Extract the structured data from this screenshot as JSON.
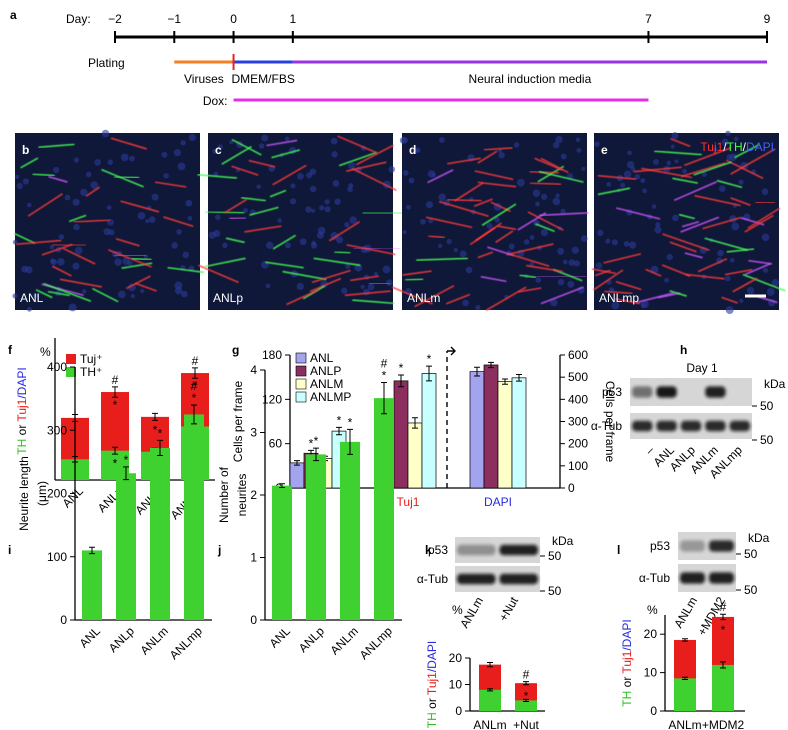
{
  "panel_labels": [
    "a",
    "b",
    "c",
    "d",
    "e",
    "f",
    "g",
    "h",
    "i",
    "j",
    "k",
    "l"
  ],
  "timeline": {
    "label": "Day:",
    "xlim": [
      -2,
      9
    ],
    "ticks": [
      {
        "value": -2,
        "label": "−2"
      },
      {
        "value": -1,
        "label": "−1"
      },
      0,
      1,
      7,
      9
    ],
    "row_label": "Plating",
    "segments": [
      {
        "label": "Viruses",
        "from": -1,
        "to": 0,
        "color": "#f08024"
      },
      {
        "label": "DMEM/FBS",
        "from": 0,
        "to": 1,
        "color": "#2a3fe0"
      },
      {
        "label": "Neural induction media",
        "from": 1,
        "to": 9,
        "color": "#9b32e6"
      }
    ],
    "marker": {
      "at": 0,
      "color": "#e0242a"
    },
    "dox": {
      "label": "Dox:",
      "from": 0,
      "to": 7,
      "color": "#e62ce6"
    }
  },
  "images": [
    {
      "label": "ANL"
    },
    {
      "label": "ANLp"
    },
    {
      "label": "ANLm"
    },
    {
      "label": "ANLmp"
    }
  ],
  "stain_legend": [
    {
      "text": "Tuj1",
      "color": "#ff3030"
    },
    {
      "text": "/",
      "color": "#ffffff"
    },
    {
      "text": "TH",
      "color": "#3cff3c"
    },
    {
      "text": "/",
      "color": "#ffffff"
    },
    {
      "text": "DAPI",
      "color": "#4060ff"
    }
  ],
  "blots": [
    {
      "title": "Day 1",
      "rows": [
        "p53",
        "α-Tub"
      ],
      "unit": "kDa",
      "markers": [
        "50",
        "50"
      ],
      "lanes": [
        "–",
        "ANL",
        "ANLp",
        "ANLm",
        "ANLmp"
      ]
    },
    {
      "rows": [
        "p53",
        "α-Tub"
      ],
      "unit": "kDa",
      "markers": [
        "50",
        "50"
      ],
      "lanes": [
        "ANLm",
        "+Nut"
      ]
    },
    {
      "rows": [
        "p53",
        "α-Tub"
      ],
      "unit": "kDa",
      "markers": [
        "50",
        "50"
      ],
      "lanes": [
        "ANLm",
        "+MDM2"
      ]
    }
  ],
  "chart_data": [
    {
      "type": "bar",
      "overlay": true,
      "categories": [
        "ANL",
        "ANLp",
        "ANLm",
        "ANLmp"
      ],
      "ylim": [
        0,
        40
      ],
      "y_unit": "%",
      "y_label_parts": [
        {
          "text": "TH",
          "color": "#2fbf24"
        },
        {
          "text": " or ",
          "color": "#000000"
        },
        {
          "text": "Tuj1",
          "color": "#e81e1c"
        },
        {
          "text": "/DAPI",
          "color": "#2a2ae0"
        }
      ],
      "series": [
        {
          "name": "Tuj⁺",
          "color": "#e81e1c",
          "values": [
            18,
            25.5,
            18.3,
            31
          ],
          "errors": [
            1,
            1.5,
            1,
            1.5
          ],
          "sig_above": [
            null,
            [
              "#"
            ],
            null,
            [
              "#"
            ]
          ],
          "sig_inside": [
            null,
            [
              "*"
            ],
            [
              "*"
            ],
            [
              "*"
            ]
          ]
        },
        {
          "name": "TH⁺",
          "color": "#3fd12f",
          "values": [
            6,
            8.5,
            8.2,
            15.5
          ],
          "errors": [
            0.8,
            1,
            1,
            1.5
          ],
          "sig_inside": [
            null,
            [
              "*"
            ],
            [
              "*"
            ],
            [
              "*"
            ]
          ]
        }
      ]
    },
    {
      "type": "bar",
      "bar_outline": true,
      "categories": [
        "TH",
        "Tuj1",
        "DAPI"
      ],
      "category_colors": [
        "#2fbf24",
        "#e81e1c",
        "#2a2ae0"
      ],
      "category_axis": [
        "y",
        "y",
        "y2"
      ],
      "ylim": [
        0,
        180
      ],
      "yticks": [
        0,
        60,
        120,
        180
      ],
      "y2lim": [
        0,
        600
      ],
      "y2ticks": [
        0,
        100,
        200,
        300,
        400,
        500,
        600
      ],
      "y_label": "Cells per frame",
      "y2_label": "Cells per frame",
      "series": [
        {
          "name": "ANL",
          "color": "#a3a3ee",
          "values": [
            34,
            97,
            525
          ],
          "errors": [
            3,
            7,
            20
          ]
        },
        {
          "name": "ANLP",
          "color": "#8c2f5f",
          "values": [
            47,
            145,
            555
          ],
          "errors": [
            4,
            8,
            12
          ],
          "sig_above": [
            [
              "*"
            ],
            [
              "*"
            ],
            null
          ]
        },
        {
          "name": "ANLM",
          "color": "#ffffc8",
          "values": [
            40,
            88,
            480
          ],
          "errors": [
            3,
            7,
            12
          ]
        },
        {
          "name": "ANLMP",
          "color": "#c8ffff",
          "values": [
            77,
            155,
            497
          ],
          "errors": [
            5,
            10,
            15
          ],
          "sig_above": [
            [
              "*"
            ],
            [
              "*"
            ],
            null
          ]
        }
      ]
    },
    {
      "type": "bar",
      "categories": [
        "ANL",
        "ANLp",
        "ANLm",
        "ANLmp"
      ],
      "ylim": [
        0,
        400
      ],
      "yticks": [
        0,
        100,
        200,
        300,
        400
      ],
      "y_label": [
        "Neurite length",
        "(μm)"
      ],
      "series": [
        {
          "color": "#3fd12f",
          "values": [
            110,
            232,
            272,
            325
          ],
          "errors": [
            5,
            10,
            12,
            15
          ],
          "sig_above": [
            null,
            [
              "*"
            ],
            [
              "*"
            ],
            [
              "#",
              "*"
            ]
          ]
        }
      ]
    },
    {
      "type": "bar",
      "categories": [
        "ANL",
        "ANLp",
        "ANLm",
        "ANLmp"
      ],
      "ylim": [
        0,
        4
      ],
      "yticks": [
        0,
        1,
        2,
        3,
        4
      ],
      "y_label": [
        "Number of",
        "neurites"
      ],
      "series": [
        {
          "color": "#3fd12f",
          "values": [
            2.15,
            2.65,
            2.85,
            3.55
          ],
          "errors": [
            0.03,
            0.1,
            0.2,
            0.25
          ],
          "sig_above": [
            null,
            [
              "*"
            ],
            [
              "*"
            ],
            [
              "#",
              "*"
            ]
          ]
        }
      ]
    },
    {
      "type": "bar",
      "overlay": true,
      "categories": [
        "ANLm",
        "+Nut"
      ],
      "ylim": [
        0,
        20
      ],
      "yticks": [
        0,
        10,
        20
      ],
      "y_unit": "%",
      "y_label_parts": [
        {
          "text": "TH",
          "color": "#2fbf24"
        },
        {
          "text": " or ",
          "color": "#000000"
        },
        {
          "text": "Tuj1",
          "color": "#e81e1c"
        },
        {
          "text": "/DAPI",
          "color": "#2a2ae0"
        }
      ],
      "series": [
        {
          "color": "#e81e1c",
          "values": [
            17.5,
            10.5
          ],
          "errors": [
            0.8,
            0.6
          ],
          "sig_above": [
            null,
            [
              "#"
            ]
          ],
          "sig_inside": [
            null,
            [
              "*"
            ]
          ]
        },
        {
          "color": "#3fd12f",
          "values": [
            8,
            4
          ],
          "errors": [
            0.4,
            0.4
          ]
        }
      ]
    },
    {
      "type": "bar",
      "overlay": true,
      "categories": [
        "ANLm",
        "+MDM2"
      ],
      "ylim": [
        0,
        25
      ],
      "yticks": [
        0,
        10,
        20
      ],
      "y_unit": "%",
      "y_label_parts": [
        {
          "text": "TH",
          "color": "#2fbf24"
        },
        {
          "text": " or ",
          "color": "#000000"
        },
        {
          "text": "Tuj1",
          "color": "#e81e1c"
        },
        {
          "text": "/DAPI",
          "color": "#2a2ae0"
        }
      ],
      "series": [
        {
          "color": "#e81e1c",
          "values": [
            18.5,
            24.5
          ],
          "errors": [
            0.3,
            0.7
          ],
          "sig_above": [
            null,
            [
              "#"
            ]
          ],
          "sig_inside": [
            null,
            [
              "*"
            ]
          ]
        },
        {
          "color": "#3fd12f",
          "values": [
            8.5,
            12
          ],
          "errors": [
            0.3,
            0.8
          ]
        }
      ]
    }
  ]
}
